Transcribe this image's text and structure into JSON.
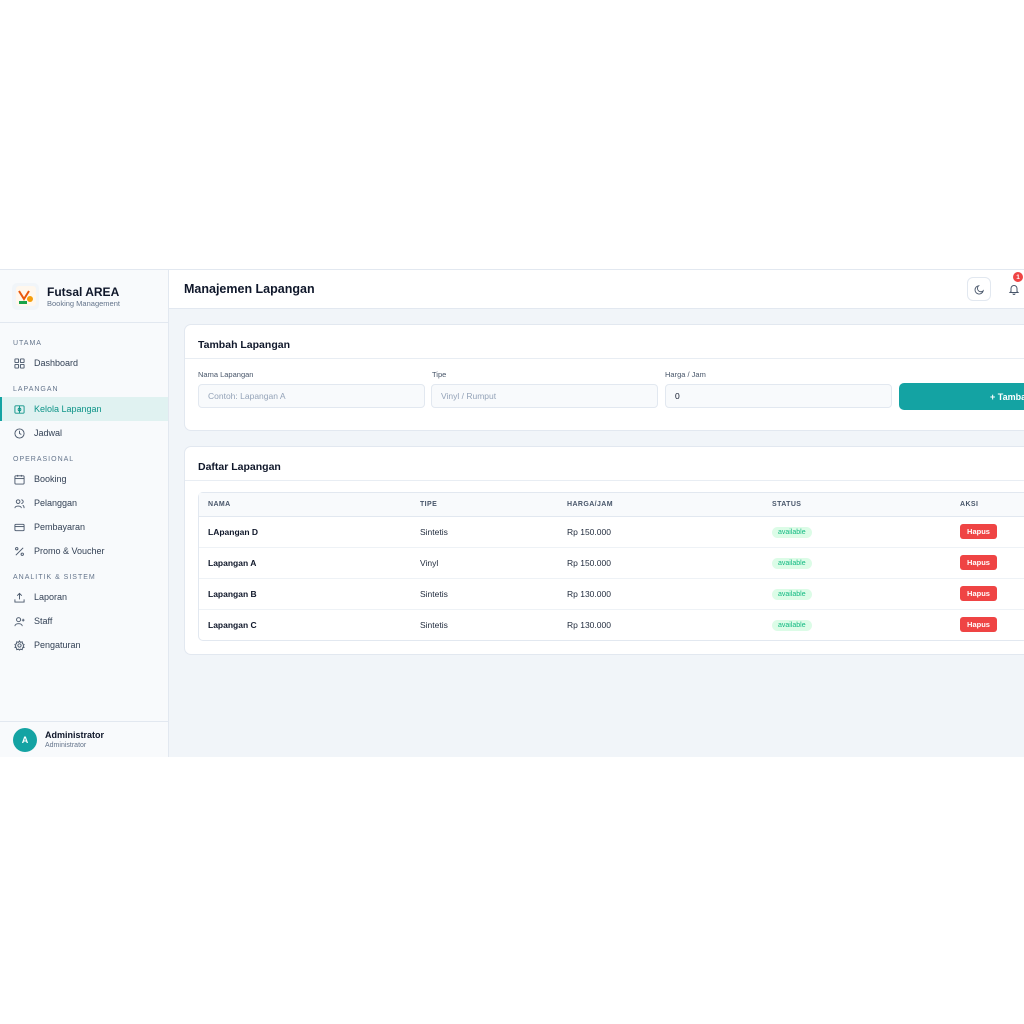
{
  "brand": {
    "title": "Futsal AREA",
    "subtitle": "Booking Management"
  },
  "sidebar": {
    "sections": [
      {
        "label": "UTAMA",
        "items": [
          {
            "label": "Dashboard",
            "icon": "grid-icon"
          }
        ]
      },
      {
        "label": "LAPANGAN",
        "items": [
          {
            "label": "Kelola Lapangan",
            "icon": "field-icon",
            "active": true
          },
          {
            "label": "Jadwal",
            "icon": "clock-icon"
          }
        ]
      },
      {
        "label": "OPERASIONAL",
        "items": [
          {
            "label": "Booking",
            "icon": "calendar-icon"
          },
          {
            "label": "Pelanggan",
            "icon": "users-icon"
          },
          {
            "label": "Pembayaran",
            "icon": "credit-card-icon"
          },
          {
            "label": "Promo & Voucher",
            "icon": "percent-icon"
          }
        ]
      },
      {
        "label": "ANALITIK & SISTEM",
        "items": [
          {
            "label": "Laporan",
            "icon": "upload-icon"
          },
          {
            "label": "Staff",
            "icon": "user-plus-icon"
          },
          {
            "label": "Pengaturan",
            "icon": "gear-icon"
          }
        ]
      }
    ]
  },
  "user": {
    "initial": "A",
    "name": "Administrator",
    "role": "Administrator"
  },
  "header": {
    "title": "Manajemen Lapangan",
    "notification_count": "1"
  },
  "form": {
    "title": "Tambah Lapangan",
    "name_label": "Nama Lapangan",
    "name_placeholder": "Contoh: Lapangan A",
    "type_label": "Tipe",
    "type_placeholder": "Vinyl / Rumput",
    "price_label": "Harga / Jam",
    "price_value": "0",
    "submit_label": "+ Tambah"
  },
  "list": {
    "title": "Daftar Lapangan",
    "columns": [
      "NAMA",
      "TIPE",
      "HARGA/JAM",
      "STATUS",
      "AKSI"
    ],
    "rows": [
      {
        "name": "LApangan D",
        "type": "Sintetis",
        "price": "Rp 150.000",
        "status": "available",
        "action": "Hapus"
      },
      {
        "name": "Lapangan A",
        "type": "Vinyl",
        "price": "Rp 150.000",
        "status": "available",
        "action": "Hapus"
      },
      {
        "name": "Lapangan B",
        "type": "Sintetis",
        "price": "Rp 130.000",
        "status": "available",
        "action": "Hapus"
      },
      {
        "name": "Lapangan C",
        "type": "Sintetis",
        "price": "Rp 130.000",
        "status": "available",
        "action": "Hapus"
      }
    ]
  },
  "colors": {
    "accent": "#14a3a3",
    "danger": "#ef4444",
    "success": "#10b981"
  }
}
